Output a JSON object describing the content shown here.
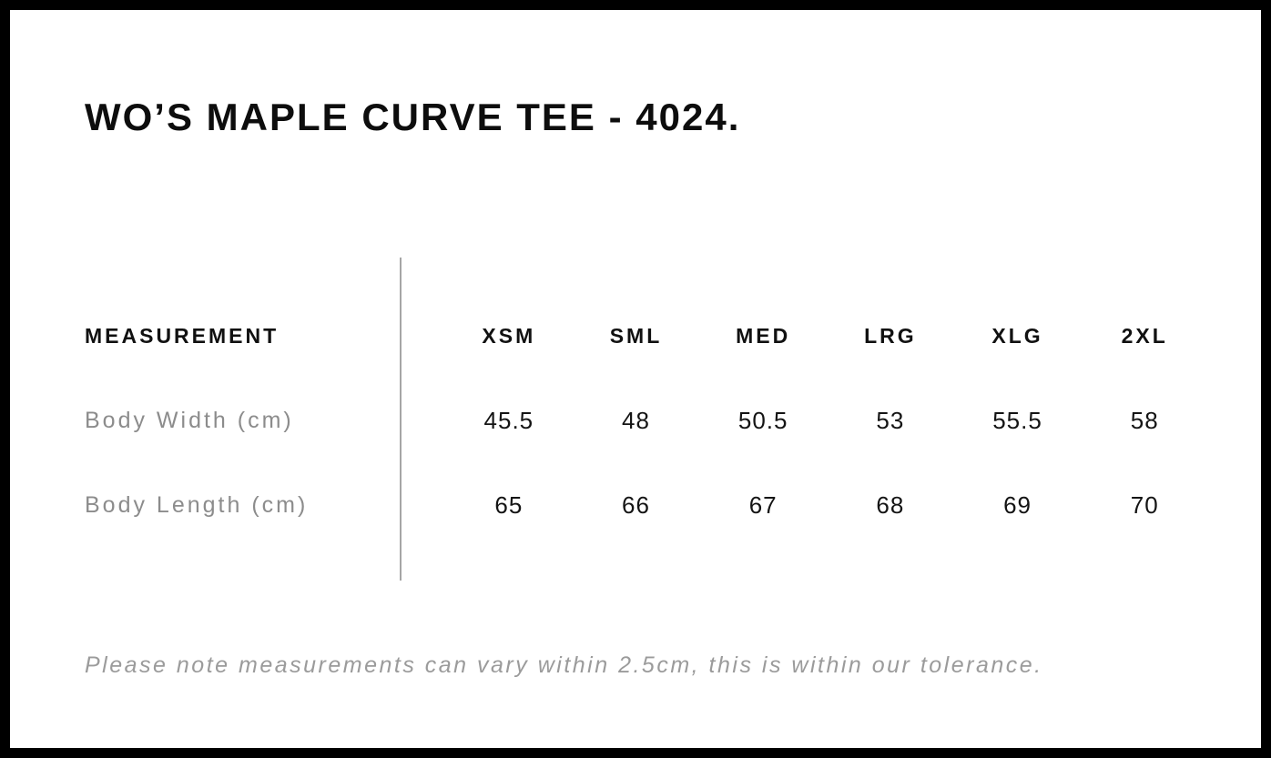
{
  "page": {
    "title": "WO’S MAPLE CURVE TEE - 4024."
  },
  "table": {
    "measurement_header": "MEASUREMENT",
    "columns": [
      "XSM",
      "SML",
      "MED",
      "LRG",
      "XLG",
      "2XL"
    ],
    "rows": [
      {
        "label": "Body Width (cm)",
        "values": [
          "45.5",
          "48",
          "50.5",
          "53",
          "55.5",
          "58"
        ]
      },
      {
        "label": "Body Length (cm)",
        "values": [
          "65",
          "66",
          "67",
          "68",
          "69",
          "70"
        ]
      }
    ]
  },
  "footer": {
    "note": "Please note measurements can vary within 2.5cm, this is within our tolerance."
  },
  "colors": {
    "page_border": "#000000",
    "heading_text": "#0d0d0d",
    "value_text": "#141414",
    "muted_label": "#8c8c8c",
    "note_text": "#9b9b9b",
    "divider": "#a6a6a6",
    "background": "#ffffff"
  },
  "chart_data": {
    "type": "table",
    "title": "WO’S MAPLE CURVE TEE - 4024.",
    "columns": [
      "MEASUREMENT",
      "XSM",
      "SML",
      "MED",
      "LRG",
      "XLG",
      "2XL"
    ],
    "rows": [
      [
        "Body Width (cm)",
        45.5,
        48,
        50.5,
        53,
        55.5,
        58
      ],
      [
        "Body Length (cm)",
        65,
        66,
        67,
        68,
        69,
        70
      ]
    ],
    "note": "Please note measurements can vary within 2.5cm, this is within our tolerance."
  }
}
